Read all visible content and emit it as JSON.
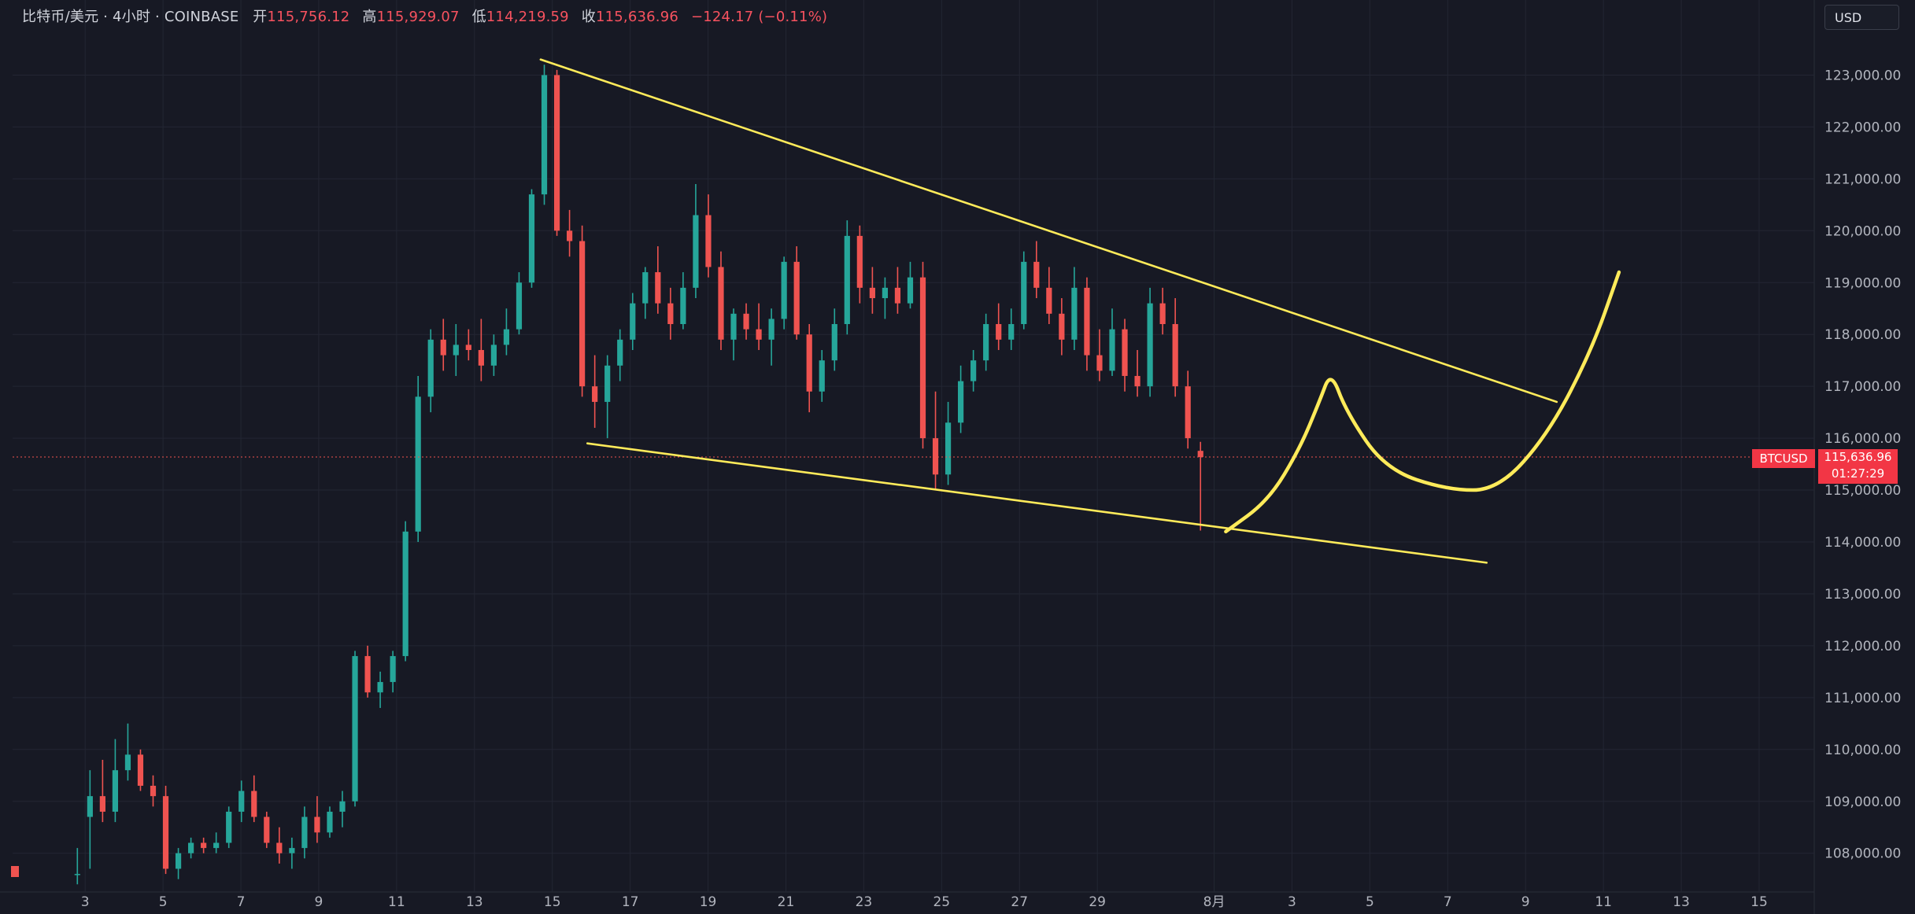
{
  "header": {
    "symbol_label": "比特币/美元 · 4小时 · COINBASE",
    "open_label": "开",
    "open_value": "115,756.12",
    "high_label": "高",
    "high_value": "115,929.07",
    "low_label": "低",
    "low_value": "114,219.59",
    "close_label": "收",
    "close_value": "115,636.96",
    "change_value": "−124.17 (−0.11%)"
  },
  "currency_button": "USD",
  "price_tag": {
    "symbol": "BTCUSD",
    "price": "115,636.96",
    "countdown": "01:27:29"
  },
  "colors": {
    "background": "#171924",
    "up": "#26a69a",
    "down": "#ef5350",
    "drawing": "#ffeb5a",
    "grid": "#232633"
  },
  "chart_data": {
    "type": "candlestick",
    "timeframe": "4h",
    "exchange": "COINBASE",
    "ylim": [
      107300,
      123900
    ],
    "y_ticks": [
      {
        "value": 108000,
        "label": "108,000.00"
      },
      {
        "value": 109000,
        "label": "109,000.00"
      },
      {
        "value": 110000,
        "label": "110,000.00"
      },
      {
        "value": 111000,
        "label": "111,000.00"
      },
      {
        "value": 112000,
        "label": "112,000.00"
      },
      {
        "value": 113000,
        "label": "113,000.00"
      },
      {
        "value": 114000,
        "label": "114,000.00"
      },
      {
        "value": 115000,
        "label": "115,000.00"
      },
      {
        "value": 116000,
        "label": "116,000.00"
      },
      {
        "value": 117000,
        "label": "117,000.00"
      },
      {
        "value": 118000,
        "label": "118,000.00"
      },
      {
        "value": 119000,
        "label": "119,000.00"
      },
      {
        "value": 120000,
        "label": "120,000.00"
      },
      {
        "value": 121000,
        "label": "121,000.00"
      },
      {
        "value": 122000,
        "label": "122,000.00"
      },
      {
        "value": 123000,
        "label": "123,000.00"
      }
    ],
    "x_ticks": [
      {
        "label": "3",
        "day": 3
      },
      {
        "label": "5",
        "day": 5
      },
      {
        "label": "7",
        "day": 7
      },
      {
        "label": "9",
        "day": 9
      },
      {
        "label": "11",
        "day": 11
      },
      {
        "label": "13",
        "day": 13
      },
      {
        "label": "15",
        "day": 15
      },
      {
        "label": "17",
        "day": 17
      },
      {
        "label": "19",
        "day": 19
      },
      {
        "label": "21",
        "day": 21
      },
      {
        "label": "23",
        "day": 23
      },
      {
        "label": "25",
        "day": 25
      },
      {
        "label": "27",
        "day": 27
      },
      {
        "label": "29",
        "day": 29
      },
      {
        "label": "8月",
        "day": 32
      },
      {
        "label": "3",
        "day": 34
      },
      {
        "label": "5",
        "day": 36
      },
      {
        "label": "7",
        "day": 38
      },
      {
        "label": "9",
        "day": 40
      },
      {
        "label": "11",
        "day": 42
      },
      {
        "label": "13",
        "day": 44
      },
      {
        "label": "15",
        "day": 46
      }
    ],
    "candles": [
      {
        "o": 107600,
        "h": 108100,
        "l": 107400,
        "c": 107600
      },
      {
        "o": 108700,
        "h": 109600,
        "l": 107700,
        "c": 109100
      },
      {
        "o": 109100,
        "h": 109800,
        "l": 108600,
        "c": 108800
      },
      {
        "o": 108800,
        "h": 110200,
        "l": 108600,
        "c": 109600
      },
      {
        "o": 109600,
        "h": 110500,
        "l": 109400,
        "c": 109900
      },
      {
        "o": 109900,
        "h": 110000,
        "l": 109200,
        "c": 109300
      },
      {
        "o": 109300,
        "h": 109500,
        "l": 108900,
        "c": 109100
      },
      {
        "o": 109100,
        "h": 109300,
        "l": 107600,
        "c": 107700
      },
      {
        "o": 107700,
        "h": 108100,
        "l": 107500,
        "c": 108000
      },
      {
        "o": 108000,
        "h": 108300,
        "l": 107900,
        "c": 108200
      },
      {
        "o": 108200,
        "h": 108300,
        "l": 108000,
        "c": 108100
      },
      {
        "o": 108100,
        "h": 108400,
        "l": 108000,
        "c": 108200
      },
      {
        "o": 108200,
        "h": 108900,
        "l": 108100,
        "c": 108800
      },
      {
        "o": 108800,
        "h": 109400,
        "l": 108600,
        "c": 109200
      },
      {
        "o": 109200,
        "h": 109500,
        "l": 108600,
        "c": 108700
      },
      {
        "o": 108700,
        "h": 108800,
        "l": 108100,
        "c": 108200
      },
      {
        "o": 108200,
        "h": 108500,
        "l": 107800,
        "c": 108000
      },
      {
        "o": 108000,
        "h": 108300,
        "l": 107700,
        "c": 108100
      },
      {
        "o": 108100,
        "h": 108900,
        "l": 107900,
        "c": 108700
      },
      {
        "o": 108700,
        "h": 109100,
        "l": 108200,
        "c": 108400
      },
      {
        "o": 108400,
        "h": 108900,
        "l": 108300,
        "c": 108800
      },
      {
        "o": 108800,
        "h": 109200,
        "l": 108500,
        "c": 109000
      },
      {
        "o": 109000,
        "h": 111900,
        "l": 108900,
        "c": 111800
      },
      {
        "o": 111800,
        "h": 112000,
        "l": 111000,
        "c": 111100
      },
      {
        "o": 111100,
        "h": 111500,
        "l": 110800,
        "c": 111300
      },
      {
        "o": 111300,
        "h": 111900,
        "l": 111100,
        "c": 111800
      },
      {
        "o": 111800,
        "h": 114400,
        "l": 111700,
        "c": 114200
      },
      {
        "o": 114200,
        "h": 117200,
        "l": 114000,
        "c": 116800
      },
      {
        "o": 116800,
        "h": 118100,
        "l": 116500,
        "c": 117900
      },
      {
        "o": 117900,
        "h": 118300,
        "l": 117300,
        "c": 117600
      },
      {
        "o": 117600,
        "h": 118200,
        "l": 117200,
        "c": 117800
      },
      {
        "o": 117800,
        "h": 118100,
        "l": 117500,
        "c": 117700
      },
      {
        "o": 117700,
        "h": 118300,
        "l": 117100,
        "c": 117400
      },
      {
        "o": 117400,
        "h": 118000,
        "l": 117200,
        "c": 117800
      },
      {
        "o": 117800,
        "h": 118500,
        "l": 117600,
        "c": 118100
      },
      {
        "o": 118100,
        "h": 119200,
        "l": 118000,
        "c": 119000
      },
      {
        "o": 119000,
        "h": 120800,
        "l": 118900,
        "c": 120700
      },
      {
        "o": 120700,
        "h": 123200,
        "l": 120500,
        "c": 123000
      },
      {
        "o": 123000,
        "h": 123100,
        "l": 119900,
        "c": 120000
      },
      {
        "o": 120000,
        "h": 120400,
        "l": 119500,
        "c": 119800
      },
      {
        "o": 119800,
        "h": 120100,
        "l": 116800,
        "c": 117000
      },
      {
        "o": 117000,
        "h": 117600,
        "l": 116200,
        "c": 116700
      },
      {
        "o": 116700,
        "h": 117600,
        "l": 116000,
        "c": 117400
      },
      {
        "o": 117400,
        "h": 118100,
        "l": 117100,
        "c": 117900
      },
      {
        "o": 117900,
        "h": 118800,
        "l": 117700,
        "c": 118600
      },
      {
        "o": 118600,
        "h": 119300,
        "l": 118300,
        "c": 119200
      },
      {
        "o": 119200,
        "h": 119700,
        "l": 118400,
        "c": 118600
      },
      {
        "o": 118600,
        "h": 118900,
        "l": 117900,
        "c": 118200
      },
      {
        "o": 118200,
        "h": 119200,
        "l": 118100,
        "c": 118900
      },
      {
        "o": 118900,
        "h": 120900,
        "l": 118700,
        "c": 120300
      },
      {
        "o": 120300,
        "h": 120700,
        "l": 119100,
        "c": 119300
      },
      {
        "o": 119300,
        "h": 119600,
        "l": 117700,
        "c": 117900
      },
      {
        "o": 117900,
        "h": 118500,
        "l": 117500,
        "c": 118400
      },
      {
        "o": 118400,
        "h": 118600,
        "l": 117900,
        "c": 118100
      },
      {
        "o": 118100,
        "h": 118600,
        "l": 117700,
        "c": 117900
      },
      {
        "o": 117900,
        "h": 118500,
        "l": 117400,
        "c": 118300
      },
      {
        "o": 118300,
        "h": 119500,
        "l": 118100,
        "c": 119400
      },
      {
        "o": 119400,
        "h": 119700,
        "l": 117900,
        "c": 118000
      },
      {
        "o": 118000,
        "h": 118200,
        "l": 116500,
        "c": 116900
      },
      {
        "o": 116900,
        "h": 117700,
        "l": 116700,
        "c": 117500
      },
      {
        "o": 117500,
        "h": 118500,
        "l": 117300,
        "c": 118200
      },
      {
        "o": 118200,
        "h": 120200,
        "l": 118000,
        "c": 119900
      },
      {
        "o": 119900,
        "h": 120100,
        "l": 118600,
        "c": 118900
      },
      {
        "o": 118900,
        "h": 119300,
        "l": 118400,
        "c": 118700
      },
      {
        "o": 118700,
        "h": 119100,
        "l": 118300,
        "c": 118900
      },
      {
        "o": 118900,
        "h": 119300,
        "l": 118400,
        "c": 118600
      },
      {
        "o": 118600,
        "h": 119400,
        "l": 118500,
        "c": 119100
      },
      {
        "o": 119100,
        "h": 119400,
        "l": 115800,
        "c": 116000
      },
      {
        "o": 116000,
        "h": 116900,
        "l": 115000,
        "c": 115300
      },
      {
        "o": 115300,
        "h": 116700,
        "l": 115100,
        "c": 116300
      },
      {
        "o": 116300,
        "h": 117400,
        "l": 116100,
        "c": 117100
      },
      {
        "o": 117100,
        "h": 117700,
        "l": 116900,
        "c": 117500
      },
      {
        "o": 117500,
        "h": 118400,
        "l": 117300,
        "c": 118200
      },
      {
        "o": 118200,
        "h": 118600,
        "l": 117700,
        "c": 117900
      },
      {
        "o": 117900,
        "h": 118500,
        "l": 117700,
        "c": 118200
      },
      {
        "o": 118200,
        "h": 119600,
        "l": 118100,
        "c": 119400
      },
      {
        "o": 119400,
        "h": 119800,
        "l": 118700,
        "c": 118900
      },
      {
        "o": 118900,
        "h": 119300,
        "l": 118200,
        "c": 118400
      },
      {
        "o": 118400,
        "h": 118700,
        "l": 117600,
        "c": 117900
      },
      {
        "o": 117900,
        "h": 119300,
        "l": 117700,
        "c": 118900
      },
      {
        "o": 118900,
        "h": 119100,
        "l": 117300,
        "c": 117600
      },
      {
        "o": 117600,
        "h": 118100,
        "l": 117100,
        "c": 117300
      },
      {
        "o": 117300,
        "h": 118500,
        "l": 117200,
        "c": 118100
      },
      {
        "o": 118100,
        "h": 118300,
        "l": 116900,
        "c": 117200
      },
      {
        "o": 117200,
        "h": 117700,
        "l": 116800,
        "c": 117000
      },
      {
        "o": 117000,
        "h": 118900,
        "l": 116800,
        "c": 118600
      },
      {
        "o": 118600,
        "h": 118900,
        "l": 118000,
        "c": 118200
      },
      {
        "o": 118200,
        "h": 118700,
        "l": 116800,
        "c": 117000
      },
      {
        "o": 117000,
        "h": 117300,
        "l": 115800,
        "c": 116000
      },
      {
        "o": 115756.12,
        "h": 115929.07,
        "l": 114219.59,
        "c": 115636.96
      }
    ],
    "current_price": 115636.96,
    "drawings": [
      {
        "type": "trendline",
        "name": "upper-trendline",
        "from": {
          "day": 14.7,
          "price": 123300
        },
        "to": {
          "day": 40.8,
          "price": 116700
        }
      },
      {
        "type": "trendline",
        "name": "lower-trendline",
        "from": {
          "day": 15.9,
          "price": 115900
        },
        "to": {
          "day": 39.0,
          "price": 113600
        }
      },
      {
        "type": "freehand",
        "name": "projection-curve",
        "points": [
          {
            "day": 32.3,
            "price": 114200
          },
          {
            "day": 33.4,
            "price": 114800
          },
          {
            "day": 34.2,
            "price": 115800
          },
          {
            "day": 34.7,
            "price": 116700
          },
          {
            "day": 35.0,
            "price": 117300
          },
          {
            "day": 35.4,
            "price": 116500
          },
          {
            "day": 36.4,
            "price": 115400
          },
          {
            "day": 38.0,
            "price": 115000
          },
          {
            "day": 39.3,
            "price": 115000
          },
          {
            "day": 40.6,
            "price": 116100
          },
          {
            "day": 41.7,
            "price": 117700
          },
          {
            "day": 42.4,
            "price": 119200
          }
        ]
      }
    ]
  }
}
